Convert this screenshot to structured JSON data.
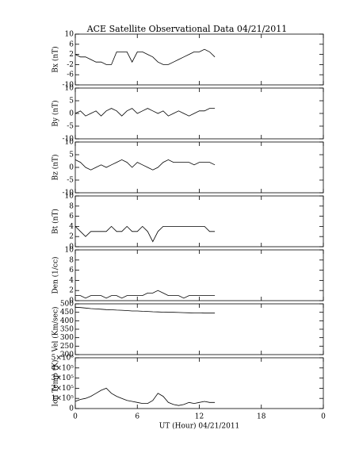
{
  "chart_data": [
    {
      "type": "line",
      "title": "ACE Satellite Observational Data   04/21/2011",
      "ylabel": "Bx (nT)",
      "color": "#000000",
      "xlim": [
        0,
        24
      ],
      "ylim": [
        -10,
        10
      ],
      "yticks": [
        -10,
        -6,
        -2,
        2,
        6,
        10
      ],
      "x": [
        0,
        0.5,
        1,
        1.5,
        2,
        2.5,
        3,
        3.5,
        4,
        4.5,
        5,
        5.5,
        6,
        6.5,
        7,
        7.5,
        8,
        8.5,
        9,
        9.5,
        10,
        10.5,
        11,
        11.5,
        12,
        12.5,
        13,
        13.5
      ],
      "values": [
        2,
        1,
        1,
        0,
        -1,
        -1,
        -2,
        -2,
        3,
        3,
        3,
        -1,
        3,
        3,
        2,
        1,
        -1,
        -2,
        -2,
        -1,
        0,
        1,
        2,
        3,
        3,
        4,
        3,
        1
      ]
    },
    {
      "type": "line",
      "ylabel": "By (nT)",
      "color": "#000000",
      "xlim": [
        0,
        24
      ],
      "ylim": [
        -10,
        10
      ],
      "yticks": [
        -10,
        -5,
        0,
        5,
        10
      ],
      "x": [
        0,
        0.5,
        1,
        1.5,
        2,
        2.5,
        3,
        3.5,
        4,
        4.5,
        5,
        5.5,
        6,
        6.5,
        7,
        7.5,
        8,
        8.5,
        9,
        9.5,
        10,
        10.5,
        11,
        11.5,
        12,
        12.5,
        13,
        13.5
      ],
      "values": [
        0,
        1,
        -1,
        0,
        1,
        -1,
        1,
        2,
        1,
        -1,
        1,
        2,
        0,
        1,
        2,
        1,
        0,
        1,
        -1,
        0,
        1,
        0,
        -1,
        0,
        1,
        1,
        2,
        2
      ]
    },
    {
      "type": "line",
      "ylabel": "Bz (nT)",
      "color": "#000000",
      "xlim": [
        0,
        24
      ],
      "ylim": [
        -10,
        10
      ],
      "yticks": [
        -10,
        -5,
        0,
        5,
        10
      ],
      "x": [
        0,
        0.5,
        1,
        1.5,
        2,
        2.5,
        3,
        3.5,
        4,
        4.5,
        5,
        5.5,
        6,
        6.5,
        7,
        7.5,
        8,
        8.5,
        9,
        9.5,
        10,
        10.5,
        11,
        11.5,
        12,
        12.5,
        13,
        13.5
      ],
      "values": [
        3,
        2,
        0,
        -1,
        0,
        1,
        0,
        1,
        2,
        3,
        2,
        0,
        2,
        1,
        0,
        -1,
        0,
        2,
        3,
        2,
        2,
        2,
        2,
        1,
        2,
        2,
        2,
        1
      ]
    },
    {
      "type": "line",
      "ylabel": "Bt (nT)",
      "color": "#000000",
      "xlim": [
        0,
        24
      ],
      "ylim": [
        0,
        10
      ],
      "yticks": [
        0,
        2,
        4,
        6,
        8,
        10
      ],
      "x": [
        0,
        0.5,
        1,
        1.5,
        2,
        2.5,
        3,
        3.5,
        4,
        4.5,
        5,
        5.5,
        6,
        6.5,
        7,
        7.5,
        8,
        8.5,
        9,
        9.5,
        10,
        10.5,
        11,
        11.5,
        12,
        12.5,
        13,
        13.5
      ],
      "values": [
        4,
        3,
        2,
        3,
        3,
        3,
        3,
        4,
        3,
        3,
        4,
        3,
        3,
        4,
        3,
        1,
        3,
        4,
        4,
        4,
        4,
        4,
        4,
        4,
        4,
        4,
        3,
        3
      ]
    },
    {
      "type": "line",
      "ylabel": "Den (1/cc)",
      "color": "#000000",
      "xlim": [
        0,
        24
      ],
      "ylim": [
        0,
        10
      ],
      "yticks": [
        0,
        2,
        4,
        6,
        8,
        10
      ],
      "x": [
        0,
        0.5,
        1,
        1.5,
        2,
        2.5,
        3,
        3.5,
        4,
        4.5,
        5,
        5.5,
        6,
        6.5,
        7,
        7.5,
        8,
        8.5,
        9,
        9.5,
        10,
        10.5,
        11,
        11.5,
        12,
        12.5,
        13,
        13.5
      ],
      "values": [
        1,
        1,
        0.5,
        1,
        1,
        1,
        0.5,
        1,
        1,
        0.5,
        1,
        1,
        1,
        1,
        1.5,
        1.5,
        2,
        1.5,
        1,
        1,
        1,
        0.5,
        1,
        1,
        1,
        1,
        1,
        1
      ]
    },
    {
      "type": "line",
      "ylabel": "Vel (Km/sec)",
      "color": "#000000",
      "xlim": [
        0,
        24
      ],
      "ylim": [
        200,
        500
      ],
      "yticks": [
        200,
        250,
        300,
        350,
        400,
        450,
        500
      ],
      "x": [
        0,
        0.5,
        1,
        1.5,
        2,
        2.5,
        3,
        3.5,
        4,
        4.5,
        5,
        5.5,
        6,
        6.5,
        7,
        7.5,
        8,
        8.5,
        9,
        9.5,
        10,
        10.5,
        11,
        11.5,
        12,
        12.5,
        13,
        13.5
      ],
      "values": [
        480,
        478,
        475,
        472,
        470,
        468,
        466,
        465,
        463,
        462,
        460,
        458,
        458,
        456,
        455,
        453,
        452,
        451,
        450,
        450,
        449,
        448,
        447,
        446,
        446,
        445,
        445,
        445
      ]
    },
    {
      "type": "line",
      "ylabel": "Ion Temp (K)",
      "xlabel": "UT (Hour)  04/21/2011",
      "color": "#000000",
      "xlim": [
        0,
        24
      ],
      "xticks": [
        0,
        6,
        12,
        18,
        {
          "value": 24,
          "label": "0"
        }
      ],
      "ylim": [
        0,
        500000
      ],
      "yticks": [
        0,
        {
          "value": 100000,
          "label": "1×10⁵"
        },
        {
          "value": 200000,
          "label": "2×10⁵"
        },
        {
          "value": 300000,
          "label": "3×10⁵"
        },
        {
          "value": 400000,
          "label": "4×10⁵"
        },
        {
          "value": 500000,
          "label": "5×10⁵"
        }
      ],
      "x": [
        0,
        0.5,
        1,
        1.5,
        2,
        2.5,
        3,
        3.5,
        4,
        4.5,
        5,
        5.5,
        6,
        6.5,
        7,
        7.5,
        8,
        8.5,
        9,
        9.5,
        10,
        10.5,
        11,
        11.5,
        12,
        12.5,
        13,
        13.5
      ],
      "values": [
        70000,
        90000,
        100000,
        120000,
        150000,
        180000,
        200000,
        150000,
        120000,
        100000,
        80000,
        70000,
        60000,
        50000,
        50000,
        80000,
        150000,
        120000,
        60000,
        40000,
        30000,
        40000,
        60000,
        50000,
        60000,
        70000,
        60000,
        60000
      ]
    }
  ]
}
